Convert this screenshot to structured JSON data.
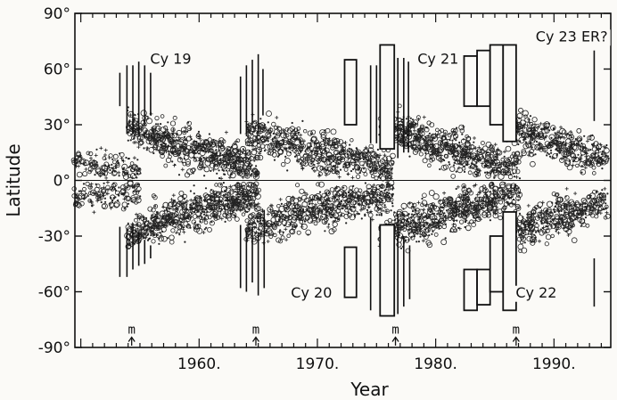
{
  "chart_data": {
    "type": "scatter",
    "title": "",
    "xlabel": "Year",
    "ylabel": "Latitude",
    "xlim": [
      1949.5,
      1994.8
    ],
    "ylim": [
      -90,
      90
    ],
    "x_ticks": [
      {
        "value": 1960,
        "label": "1960."
      },
      {
        "value": 1970,
        "label": "1970."
      },
      {
        "value": 1980,
        "label": "1980."
      },
      {
        "value": 1990,
        "label": "1990."
      }
    ],
    "y_ticks": [
      {
        "value": 90,
        "label": "90°"
      },
      {
        "value": 60,
        "label": "60°"
      },
      {
        "value": 30,
        "label": "30°"
      },
      {
        "value": 0,
        "label": "0°"
      },
      {
        "value": -30,
        "label": "-30°"
      },
      {
        "value": -60,
        "label": "-60°"
      },
      {
        "value": -90,
        "label": "-90°"
      }
    ],
    "equator": 0,
    "cycle_labels": [
      {
        "text": "Cy 19",
        "x": 1957.6,
        "y": 63
      },
      {
        "text": "Cy 20",
        "x": 1969.5,
        "y": -63
      },
      {
        "text": "Cy 21",
        "x": 1980.2,
        "y": 63
      },
      {
        "text": "Cy 22",
        "x": 1988.5,
        "y": -63
      },
      {
        "text": "Cy 23 ER?",
        "x": 1991.5,
        "y": 75
      }
    ],
    "minima_markers": [
      {
        "label": "m",
        "year": 1954.3
      },
      {
        "label": "m",
        "year": 1964.8
      },
      {
        "label": "m",
        "year": 1976.6
      },
      {
        "label": "m",
        "year": 1986.8
      }
    ],
    "high_latitude_lines": [
      {
        "year": 1953.3,
        "lat": [
          40,
          58
        ]
      },
      {
        "year": 1953.9,
        "lat": [
          25,
          62
        ]
      },
      {
        "year": 1954.4,
        "lat": [
          25,
          62
        ]
      },
      {
        "year": 1954.9,
        "lat": [
          25,
          64
        ]
      },
      {
        "year": 1955.4,
        "lat": [
          30,
          62
        ]
      },
      {
        "year": 1955.9,
        "lat": [
          35,
          58
        ]
      },
      {
        "year": 1963.5,
        "lat": [
          25,
          56
        ]
      },
      {
        "year": 1964.0,
        "lat": [
          25,
          62
        ]
      },
      {
        "year": 1964.5,
        "lat": [
          30,
          65
        ]
      },
      {
        "year": 1965.0,
        "lat": [
          25,
          68
        ]
      },
      {
        "year": 1965.4,
        "lat": [
          35,
          60
        ]
      },
      {
        "year": 1974.5,
        "lat": [
          20,
          62
        ]
      },
      {
        "year": 1975.0,
        "lat": [
          20,
          62
        ]
      },
      {
        "year": 1976.8,
        "lat": [
          12,
          66
        ]
      },
      {
        "year": 1977.3,
        "lat": [
          15,
          66
        ]
      },
      {
        "year": 1977.7,
        "lat": [
          15,
          64
        ]
      },
      {
        "year": 1993.4,
        "lat": [
          32,
          70
        ]
      },
      {
        "year": 1953.3,
        "lat": [
          -52,
          -25
        ]
      },
      {
        "year": 1953.9,
        "lat": [
          -52,
          -26
        ]
      },
      {
        "year": 1954.4,
        "lat": [
          -48,
          -25
        ]
      },
      {
        "year": 1954.9,
        "lat": [
          -46,
          -28
        ]
      },
      {
        "year": 1955.4,
        "lat": [
          -45,
          -32
        ]
      },
      {
        "year": 1955.9,
        "lat": [
          -42,
          -35
        ]
      },
      {
        "year": 1963.5,
        "lat": [
          -58,
          -24
        ]
      },
      {
        "year": 1964.0,
        "lat": [
          -60,
          -28
        ]
      },
      {
        "year": 1964.5,
        "lat": [
          -55,
          -25
        ]
      },
      {
        "year": 1965.0,
        "lat": [
          -62,
          -28
        ]
      },
      {
        "year": 1965.5,
        "lat": [
          -58,
          -16
        ]
      },
      {
        "year": 1974.5,
        "lat": [
          -70,
          -20
        ]
      },
      {
        "year": 1976.8,
        "lat": [
          -72,
          -18
        ]
      },
      {
        "year": 1977.3,
        "lat": [
          -68,
          -30
        ]
      },
      {
        "year": 1977.8,
        "lat": [
          -64,
          -35
        ]
      },
      {
        "year": 1993.4,
        "lat": [
          -68,
          -42
        ]
      }
    ],
    "high_latitude_boxes": [
      {
        "x0": 1972.3,
        "x1": 1973.3,
        "lat0": 30,
        "lat1": 65
      },
      {
        "x0": 1975.3,
        "x1": 1976.5,
        "lat0": 17,
        "lat1": 73
      },
      {
        "x0": 1982.4,
        "x1": 1983.5,
        "lat0": 40,
        "lat1": 67
      },
      {
        "x0": 1983.5,
        "x1": 1984.6,
        "lat0": 40,
        "lat1": 70
      },
      {
        "x0": 1984.6,
        "x1": 1985.7,
        "lat0": 30,
        "lat1": 73
      },
      {
        "x0": 1985.7,
        "x1": 1986.8,
        "lat0": 21,
        "lat1": 73
      },
      {
        "x0": 1972.3,
        "x1": 1973.3,
        "lat0": -63,
        "lat1": -36
      },
      {
        "x0": 1975.3,
        "x1": 1976.5,
        "lat0": -73,
        "lat1": -24
      },
      {
        "x0": 1982.4,
        "x1": 1983.5,
        "lat0": -70,
        "lat1": -48
      },
      {
        "x0": 1983.5,
        "x1": 1984.6,
        "lat0": -67,
        "lat1": -48
      },
      {
        "x0": 1984.6,
        "x1": 1985.7,
        "lat0": -60,
        "lat1": -30
      },
      {
        "x0": 1985.7,
        "x1": 1986.8,
        "lat0": -70,
        "lat1": -17
      }
    ],
    "butterfly_wings": [
      {
        "start": 1949.5,
        "end": 1955.0,
        "lat_start": 10,
        "lat_end": 6,
        "spread": 7,
        "count": 140
      },
      {
        "start": 1954.0,
        "end": 1965.0,
        "lat_start": 30,
        "lat_end": 7,
        "spread": 8,
        "count": 650
      },
      {
        "start": 1964.0,
        "end": 1976.5,
        "lat_start": 27,
        "lat_end": 7,
        "spread": 8,
        "count": 600
      },
      {
        "start": 1975.3,
        "end": 1987.0,
        "lat_start": 31,
        "lat_end": 7,
        "spread": 8,
        "count": 650
      },
      {
        "start": 1986.0,
        "end": 1994.5,
        "lat_start": 30,
        "lat_end": 12,
        "spread": 8,
        "count": 430
      }
    ],
    "grid": false,
    "legend": "none"
  }
}
